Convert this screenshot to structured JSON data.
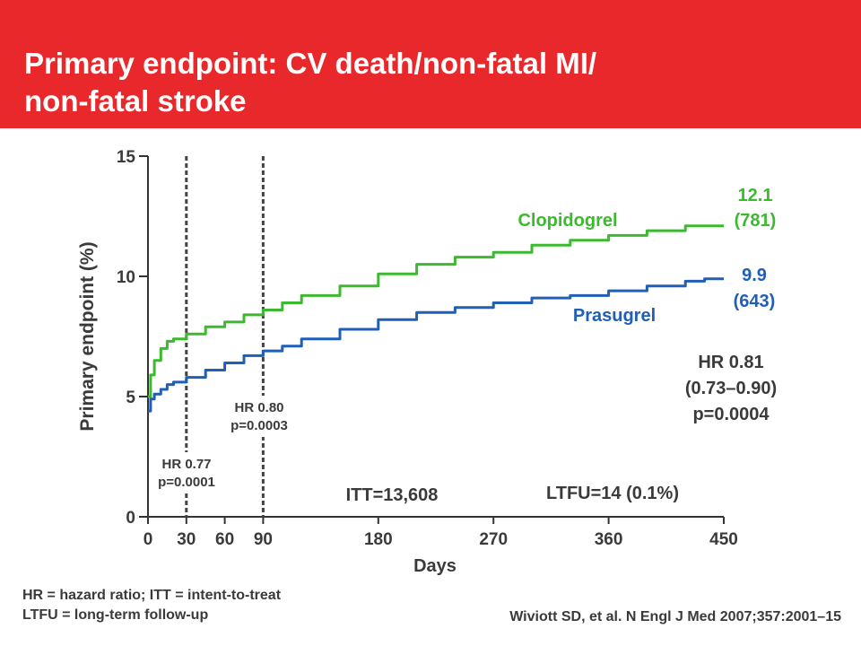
{
  "slide": {
    "title": "Primary endpoint: CV death/non-fatal MI/\nnon-fatal stroke",
    "header_color": "#e8282b",
    "footnote_lines": [
      "HR = hazard ratio; ITT = intent-to-treat",
      "LTFU = long-term follow-up"
    ],
    "citation": "Wiviott SD, et al. N Engl J Med 2007;357:2001–15"
  },
  "chart_data": {
    "type": "line",
    "title": "",
    "xlabel": "Days",
    "ylabel": "Primary endpoint (%)",
    "xlim": [
      0,
      450
    ],
    "ylim": [
      0,
      15
    ],
    "xticks": [
      0,
      30,
      60,
      90,
      180,
      270,
      360,
      450
    ],
    "yticks": [
      0,
      5,
      10,
      15
    ],
    "grid": false,
    "series": [
      {
        "name": "Clopidogrel",
        "color": "#3cb92e",
        "end_value": "12.1",
        "end_count": "(781)",
        "x": [
          0,
          2,
          5,
          10,
          15,
          20,
          30,
          45,
          60,
          75,
          90,
          105,
          120,
          150,
          180,
          210,
          240,
          270,
          300,
          330,
          360,
          390,
          420,
          435,
          450
        ],
        "y": [
          5.0,
          5.9,
          6.5,
          7.0,
          7.3,
          7.4,
          7.6,
          7.9,
          8.1,
          8.4,
          8.6,
          8.9,
          9.2,
          9.6,
          10.1,
          10.5,
          10.8,
          11.0,
          11.3,
          11.5,
          11.7,
          11.9,
          12.1,
          12.1,
          12.1
        ]
      },
      {
        "name": "Prasugrel",
        "color": "#1f5fb8",
        "end_value": "9.9",
        "end_count": "(643)",
        "x": [
          0,
          2,
          5,
          10,
          15,
          20,
          30,
          45,
          60,
          75,
          90,
          105,
          120,
          150,
          180,
          210,
          240,
          270,
          300,
          330,
          360,
          390,
          420,
          435,
          450
        ],
        "y": [
          4.4,
          4.9,
          5.1,
          5.3,
          5.5,
          5.6,
          5.8,
          6.1,
          6.4,
          6.7,
          6.9,
          7.1,
          7.4,
          7.8,
          8.2,
          8.5,
          8.7,
          8.9,
          9.1,
          9.2,
          9.4,
          9.6,
          9.8,
          9.9,
          9.9
        ]
      }
    ],
    "reference_lines": [
      {
        "x": 30,
        "lines": [
          "HR 0.77",
          "p=0.0001"
        ]
      },
      {
        "x": 90,
        "lines": [
          "HR 0.80",
          "p=0.0003"
        ]
      }
    ],
    "annotations": {
      "overall_hr": [
        "HR 0.81",
        "(0.73–0.90)",
        "p=0.0004"
      ],
      "itt": "ITT=13,608",
      "ltfu": "LTFU=14 (0.1%)"
    },
    "text_color": "#3a3a3a"
  }
}
